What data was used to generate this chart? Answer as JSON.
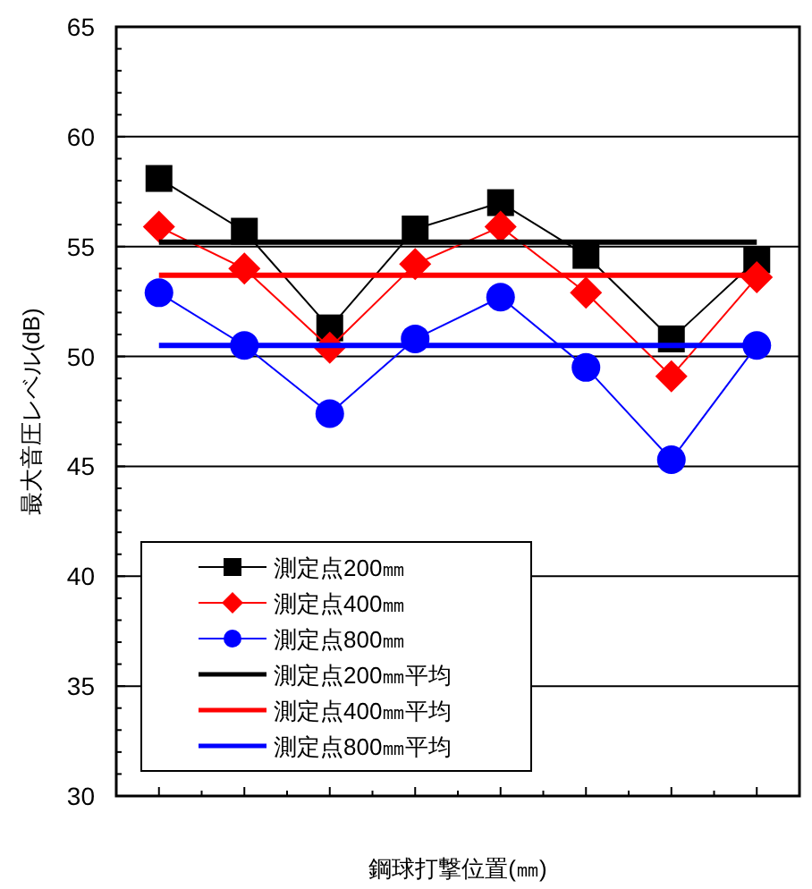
{
  "chart_data": {
    "type": "line",
    "xlabel": "鋼球打撃位置(㎜)",
    "ylabel": "最大音圧レベル(dB)",
    "categories": [
      null,
      null,
      null,
      null,
      null,
      null,
      null,
      null
    ],
    "series": [
      {
        "name": "測定点200㎜",
        "color": "#000000",
        "marker": "square",
        "values": [
          58.1,
          55.7,
          51.3,
          55.8,
          57.0,
          54.6,
          50.8,
          54.4
        ]
      },
      {
        "name": "測定点400㎜",
        "color": "#ff0000",
        "marker": "diamond",
        "values": [
          55.9,
          54.0,
          50.4,
          54.2,
          55.9,
          52.9,
          49.1,
          53.6
        ]
      },
      {
        "name": "測定点800㎜",
        "color": "#0000ff",
        "marker": "circle",
        "values": [
          52.9,
          50.5,
          47.4,
          50.8,
          52.7,
          49.5,
          45.3,
          50.5
        ]
      },
      {
        "name": "測定点200㎜平均",
        "color": "#000000",
        "marker": "none",
        "values": [
          55.2,
          55.2,
          55.2,
          55.2,
          55.2,
          55.2,
          55.2,
          55.2
        ]
      },
      {
        "name": "測定点400㎜平均",
        "color": "#ff0000",
        "marker": "none",
        "values": [
          53.7,
          53.7,
          53.7,
          53.7,
          53.7,
          53.7,
          53.7,
          53.7
        ]
      },
      {
        "name": "測定点800㎜平均",
        "color": "#0000ff",
        "marker": "none",
        "values": [
          50.5,
          50.5,
          50.5,
          50.5,
          50.5,
          50.5,
          50.5,
          50.5
        ]
      }
    ],
    "ylim": [
      30,
      65
    ],
    "yticks": [
      30,
      35,
      40,
      45,
      50,
      55,
      60,
      65
    ],
    "grid": "y",
    "legend": "bottom left",
    "line_style": "solid"
  }
}
